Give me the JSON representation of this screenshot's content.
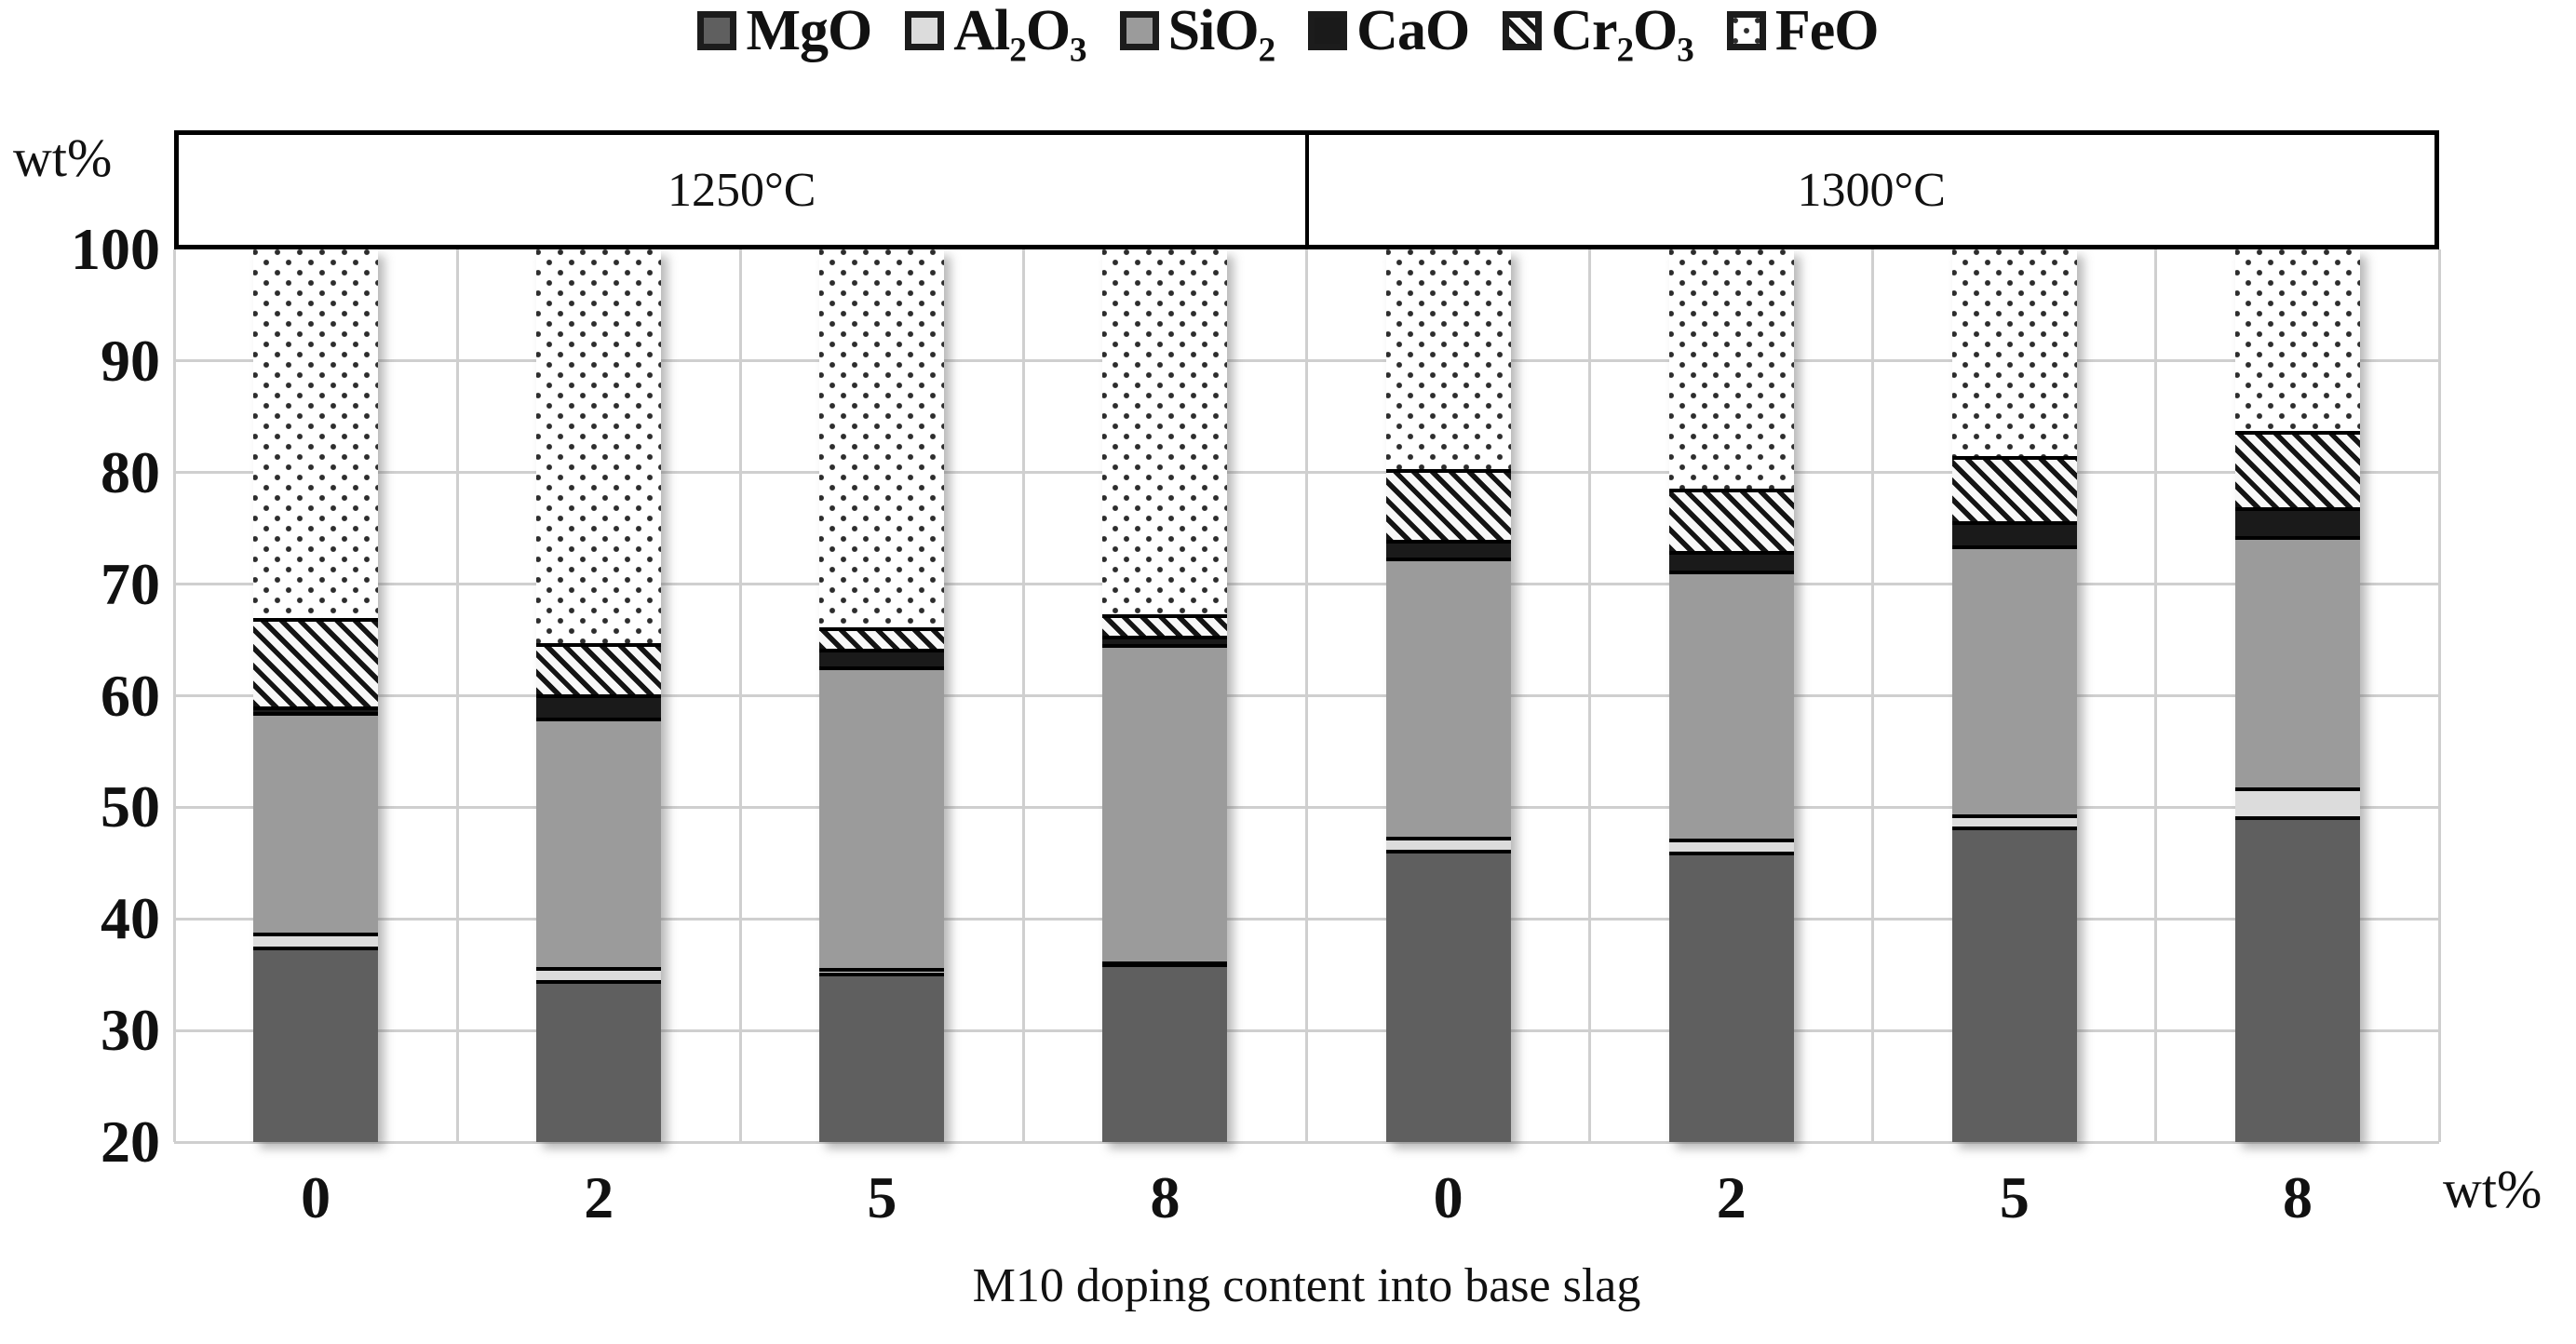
{
  "legend": {
    "items": [
      {
        "key": "mgo",
        "label": "MgO"
      },
      {
        "key": "al2o3",
        "label": "Al₂O₃"
      },
      {
        "key": "sio2",
        "label": "SiO₂"
      },
      {
        "key": "cao",
        "label": "CaO"
      },
      {
        "key": "cr2o3",
        "label": "Cr₂O₃"
      },
      {
        "key": "feo",
        "label": "FeO"
      }
    ]
  },
  "header": {
    "groups": [
      {
        "label": "1250°C"
      },
      {
        "label": "1300°C"
      }
    ]
  },
  "y_axis": {
    "unit_label": "wt%",
    "ticks": [
      100,
      90,
      80,
      70,
      60,
      50,
      40,
      30,
      20
    ],
    "min": 20,
    "max": 100
  },
  "x_axis": {
    "unit_label": "wt%",
    "title": "M10 doping content into base slag"
  },
  "chart_data": {
    "type": "bar",
    "stacked": true,
    "title": "M10 doping content into base slag",
    "xlabel": "wt%",
    "ylabel": "wt%",
    "ylim": [
      20,
      100
    ],
    "grid": true,
    "legend_position": "top",
    "group_labels": [
      "1250°C",
      "1300°C"
    ],
    "categories": [
      "0",
      "2",
      "5",
      "8",
      "0",
      "2",
      "5",
      "8"
    ],
    "series": [
      {
        "key": "mgo",
        "name": "MgO",
        "values": [
          37.5,
          34.5,
          35.2,
          36.0,
          46.2,
          46.0,
          48.3,
          49.2
        ]
      },
      {
        "key": "al2o3",
        "name": "Al₂O₃",
        "values": [
          1.3,
          1.2,
          0.4,
          0.2,
          1.2,
          1.2,
          1.1,
          2.6
        ]
      },
      {
        "key": "sio2",
        "name": "SiO₂",
        "values": [
          19.7,
          22.3,
          27.0,
          28.4,
          25.0,
          24.0,
          24.1,
          22.5
        ]
      },
      {
        "key": "cao",
        "name": "CaO",
        "values": [
          0.5,
          2.1,
          1.6,
          0.8,
          1.6,
          1.8,
          2.1,
          2.6
        ]
      },
      {
        "key": "cr2o3",
        "name": "Cr₂O₃",
        "values": [
          8.0,
          4.6,
          1.9,
          1.9,
          6.3,
          5.6,
          5.9,
          6.8
        ]
      },
      {
        "key": "feo",
        "name": "FeO",
        "values": [
          33.0,
          35.3,
          33.9,
          32.7,
          19.7,
          21.4,
          18.5,
          16.3
        ]
      }
    ]
  },
  "colors": {
    "mgo": "#5f5f5f",
    "al2o3": "#dcdcdc",
    "sio2": "#9b9b9b",
    "cao": "#1a1a1a",
    "cr2o3_stripe": "#141414",
    "feo_dot": "#2d2d2d",
    "pattern_bg": "#ffffff",
    "grid": "#cfcfcf",
    "border": "#000000"
  }
}
